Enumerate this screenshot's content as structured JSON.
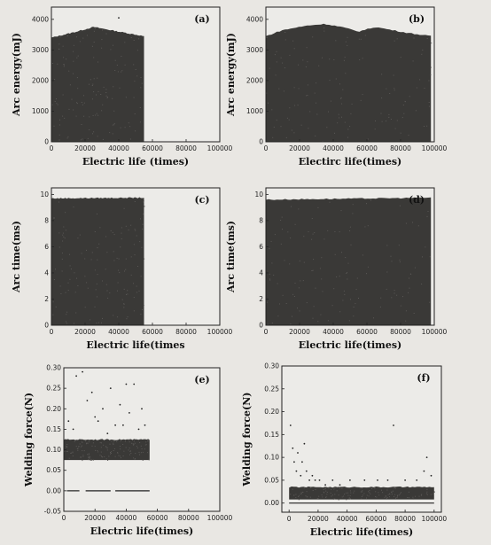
{
  "chart_data": [
    {
      "id": "a",
      "type": "scatter",
      "panel_label": "(a)",
      "xlabel": "Electric life (times)",
      "ylabel": "Arc energy(mJ)",
      "xlim": [
        0,
        100000
      ],
      "ylim": [
        0,
        4400
      ],
      "xticks": [
        "0",
        "20000",
        "40000",
        "60000",
        "80000",
        "100000"
      ],
      "yticks": [
        "0",
        "1000",
        "2000",
        "3000",
        "4000"
      ],
      "data_extent": [
        0,
        55000
      ],
      "band_upper": [
        [
          0,
          3400
        ],
        [
          15000,
          3600
        ],
        [
          25000,
          3750
        ],
        [
          35000,
          3650
        ],
        [
          45000,
          3550
        ],
        [
          55000,
          3450
        ]
      ],
      "band_lower": [
        [
          0,
          0
        ],
        [
          55000,
          0
        ]
      ],
      "outliers": [
        [
          40000,
          4050
        ]
      ]
    },
    {
      "id": "b",
      "type": "scatter",
      "panel_label": "(b)",
      "xlabel": "Electirc life(times)",
      "ylabel": "Arc energy(mJ)",
      "xlim": [
        0,
        100000
      ],
      "ylim": [
        0,
        4400
      ],
      "xticks": [
        "0",
        "20000",
        "40000",
        "60000",
        "80000",
        "100000"
      ],
      "yticks": [
        "0",
        "1000",
        "2000",
        "3000",
        "4000"
      ],
      "data_extent": [
        0,
        98000
      ],
      "band_upper": [
        [
          0,
          3450
        ],
        [
          10000,
          3650
        ],
        [
          25000,
          3800
        ],
        [
          35000,
          3850
        ],
        [
          45000,
          3750
        ],
        [
          55000,
          3600
        ],
        [
          65000,
          3750
        ],
        [
          75000,
          3650
        ],
        [
          85000,
          3550
        ],
        [
          98000,
          3450
        ]
      ],
      "band_lower": [
        [
          0,
          0
        ],
        [
          98000,
          0
        ]
      ],
      "outliers": []
    },
    {
      "id": "c",
      "type": "scatter",
      "panel_label": "(c)",
      "xlabel": "Electric life(times",
      "ylabel": "Arc time(ms)",
      "xlim": [
        0,
        100000
      ],
      "ylim": [
        0,
        10.5
      ],
      "xticks": [
        "0",
        "20000",
        "40000",
        "60000",
        "80000",
        "100000"
      ],
      "yticks": [
        "0",
        "2",
        "4",
        "6",
        "8",
        "10"
      ],
      "data_extent": [
        0,
        55000
      ],
      "band_upper": [
        [
          0,
          9.7
        ],
        [
          55000,
          9.75
        ]
      ],
      "band_lower": [
        [
          0,
          0
        ],
        [
          55000,
          0
        ]
      ],
      "outliers": []
    },
    {
      "id": "d",
      "type": "scatter",
      "panel_label": "(d)",
      "xlabel": "Electric life(times)",
      "ylabel": "Arc time(ms)",
      "xlim": [
        0,
        100000
      ],
      "ylim": [
        0,
        10.5
      ],
      "xticks": [
        "0",
        "20000",
        "40000",
        "60000",
        "80000",
        "100000"
      ],
      "yticks": [
        "0",
        "2",
        "4",
        "6",
        "8",
        "10"
      ],
      "data_extent": [
        0,
        98000
      ],
      "band_upper": [
        [
          0,
          9.6
        ],
        [
          98000,
          9.75
        ]
      ],
      "band_lower": [
        [
          0,
          0
        ],
        [
          98000,
          0
        ]
      ],
      "outliers": []
    },
    {
      "id": "e",
      "type": "scatter",
      "panel_label": "(e)",
      "xlabel": "Electric life(times)",
      "ylabel": "Welding force(N)",
      "xlim": [
        0,
        100000
      ],
      "ylim": [
        -0.05,
        0.3
      ],
      "xticks": [
        "0",
        "20000",
        "40000",
        "60000",
        "80000",
        "100000"
      ],
      "yticks": [
        "-0.05",
        "0.00",
        "0.05",
        "0.10",
        "0.15",
        "0.20",
        "0.25",
        "0.30"
      ],
      "data_extent": [
        0,
        55000
      ],
      "band_upper": [
        [
          0,
          0.125
        ],
        [
          55000,
          0.125
        ]
      ],
      "band_lower": [
        [
          0,
          0.075
        ],
        [
          55000,
          0.075
        ]
      ],
      "outliers": [
        [
          8000,
          0.28
        ],
        [
          12000,
          0.29
        ],
        [
          15000,
          0.22
        ],
        [
          20000,
          0.18
        ],
        [
          25000,
          0.2
        ],
        [
          30000,
          0.25
        ],
        [
          33000,
          0.16
        ],
        [
          36000,
          0.21
        ],
        [
          40000,
          0.26
        ],
        [
          42000,
          0.19
        ],
        [
          45000,
          0.26
        ],
        [
          48000,
          0.15
        ],
        [
          52000,
          0.16
        ],
        [
          6000,
          0.15
        ],
        [
          18000,
          0.24
        ],
        [
          28000,
          0.14
        ],
        [
          38000,
          0.16
        ],
        [
          22000,
          0.17
        ],
        [
          3000,
          0.17
        ],
        [
          50000,
          0.2
        ]
      ],
      "zero_line": [
        [
          2000,
          0.0
        ],
        [
          55000,
          0.0
        ]
      ],
      "zero_gaps": [
        [
          10000,
          14000
        ],
        [
          30000,
          33000
        ]
      ]
    },
    {
      "id": "f",
      "type": "scatter",
      "panel_label": "(f)",
      "xlabel": "Electric life(times)",
      "ylabel": "Welding force(N)",
      "xlim": [
        -5000,
        105000
      ],
      "ylim": [
        -0.02,
        0.3
      ],
      "xticks": [
        "0",
        "20000",
        "40000",
        "60000",
        "80000",
        "100000"
      ],
      "yticks": [
        "0.00",
        "0.05",
        "0.10",
        "0.15",
        "0.20",
        "0.25",
        "0.30"
      ],
      "data_extent": [
        0,
        100000
      ],
      "band_upper": [
        [
          0,
          0.035
        ],
        [
          100000,
          0.035
        ]
      ],
      "band_lower": [
        [
          0,
          0.008
        ],
        [
          100000,
          0.008
        ]
      ],
      "outliers": [
        [
          1000,
          0.17
        ],
        [
          2500,
          0.12
        ],
        [
          3500,
          0.09
        ],
        [
          5000,
          0.07
        ],
        [
          6000,
          0.11
        ],
        [
          8000,
          0.06
        ],
        [
          9000,
          0.09
        ],
        [
          10500,
          0.13
        ],
        [
          12000,
          0.07
        ],
        [
          14000,
          0.05
        ],
        [
          16000,
          0.06
        ],
        [
          18000,
          0.05
        ],
        [
          21000,
          0.05
        ],
        [
          25000,
          0.04
        ],
        [
          30000,
          0.05
        ],
        [
          35000,
          0.04
        ],
        [
          42000,
          0.05
        ],
        [
          52000,
          0.05
        ],
        [
          61000,
          0.05
        ],
        [
          68000,
          0.05
        ],
        [
          72000,
          0.17
        ],
        [
          80000,
          0.05
        ],
        [
          88000,
          0.05
        ],
        [
          93000,
          0.07
        ],
        [
          95000,
          0.1
        ],
        [
          98000,
          0.06
        ]
      ],
      "zero_line": [
        [
          0,
          0.0
        ],
        [
          100000,
          0.0
        ]
      ],
      "zero_gaps": []
    }
  ]
}
